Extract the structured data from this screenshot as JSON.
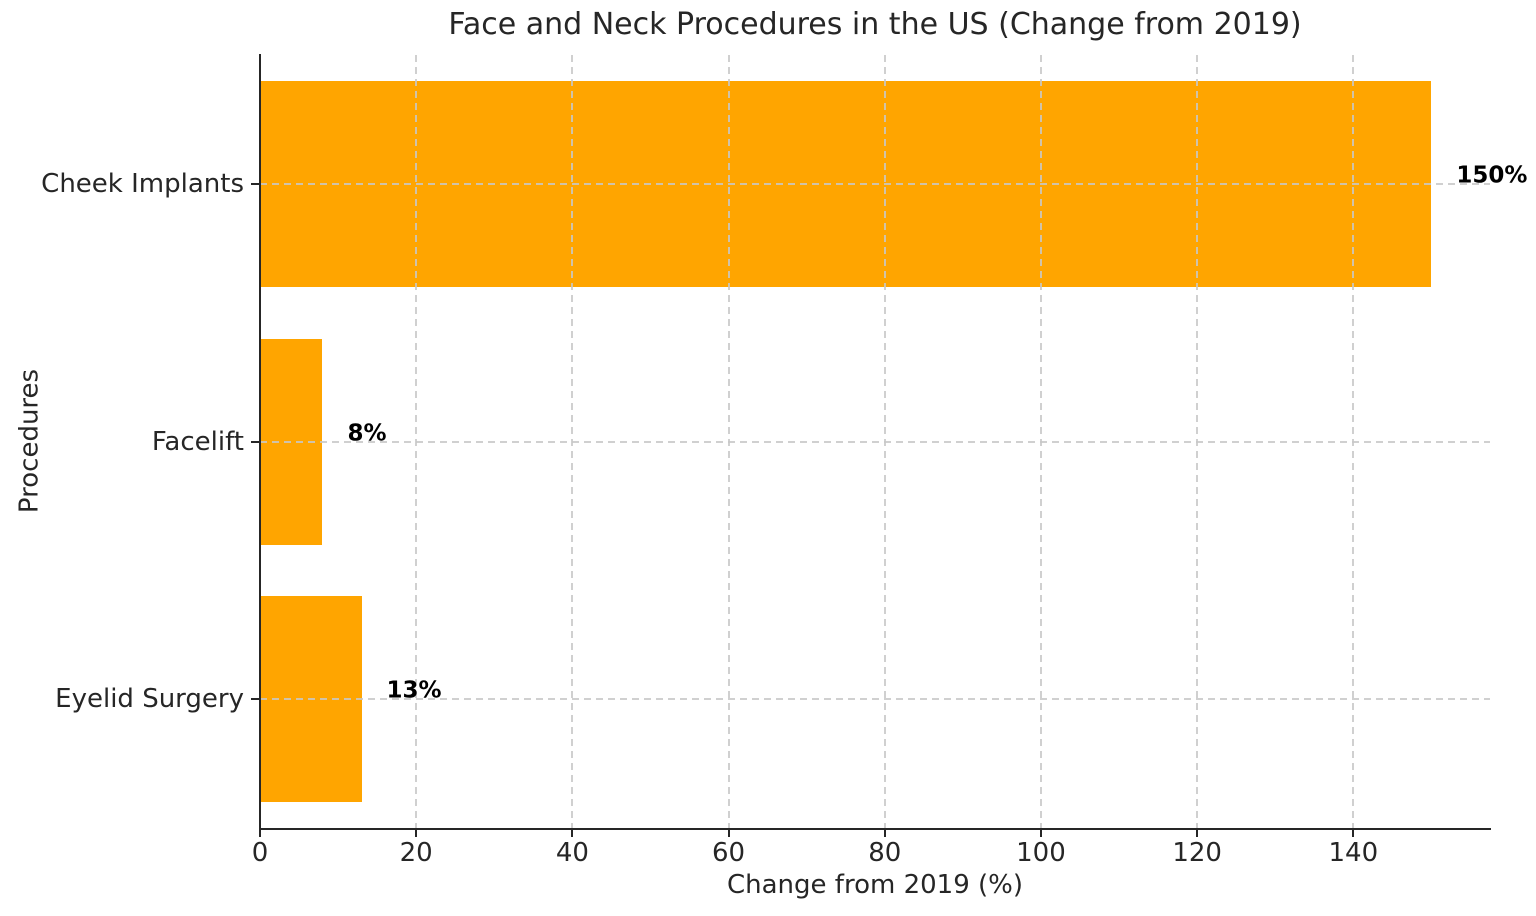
{
  "title": "Face and Neck Procedures in the US (Change from 2019)",
  "chart_data": {
    "type": "bar",
    "orientation": "horizontal",
    "title": "Face and Neck Procedures in the US (Change from 2019)",
    "categories": [
      "Cheek Implants",
      "Facelift",
      "Eyelid Surgery"
    ],
    "values": [
      150,
      8,
      13
    ],
    "bar_labels": [
      "150%",
      "8%",
      "13%"
    ],
    "xlabel": "Change from 2019 (%)",
    "ylabel": "Procedures",
    "xticks": [
      0,
      20,
      40,
      60,
      80,
      100,
      120,
      140
    ],
    "xlim": [
      0,
      157.5
    ],
    "grid": "dashed-both-axes",
    "legend": "none",
    "colors": {
      "bar": "#FFA500",
      "text": "#262626",
      "value_label": "#000000",
      "grid": "#c8c8c8",
      "spine": "#262626",
      "background": "#ffffff"
    }
  }
}
